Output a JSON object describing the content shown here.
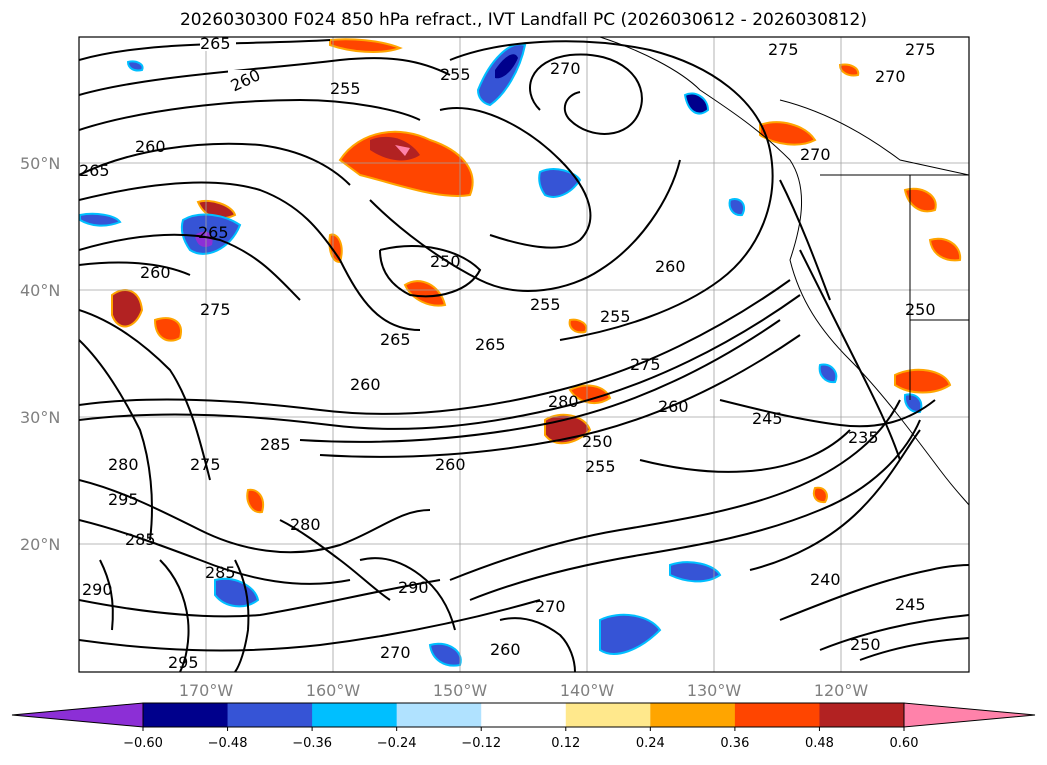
{
  "title": "2026030300 F024 850 hPa refract., IVT Landfall PC (2026030612 - 2026030812)",
  "lat_labels": [
    "50°N",
    "40°N",
    "30°N",
    "20°N"
  ],
  "lon_labels": [
    "170°W",
    "160°W",
    "150°W",
    "140°W",
    "130°W",
    "120°W"
  ],
  "colorbar": {
    "colors": [
      "#8c2fd6",
      "#00008c",
      "#3654d6",
      "#00bfff",
      "#b0e2ff",
      "#ffffff",
      "#ffe88c",
      "#ffa500",
      "#ff4500",
      "#b22222",
      "#ff82aa"
    ],
    "ticks": [
      "−0.60",
      "−0.48",
      "−0.36",
      "−0.24",
      "−0.12",
      "0.12",
      "0.24",
      "0.36",
      "0.48",
      "0.60"
    ]
  },
  "contour_labels": [
    "265",
    "260",
    "255",
    "270",
    "275",
    "275",
    "270",
    "265",
    "260",
    "265",
    "255",
    "260",
    "250",
    "270",
    "275",
    "265",
    "255",
    "255",
    "265",
    "260",
    "260",
    "280",
    "275",
    "260",
    "250",
    "245",
    "235",
    "285",
    "275",
    "280",
    "295",
    "285",
    "280",
    "255",
    "290",
    "260",
    "270",
    "240",
    "245",
    "250",
    "290",
    "295",
    "285",
    "270",
    "260",
    "250"
  ]
}
